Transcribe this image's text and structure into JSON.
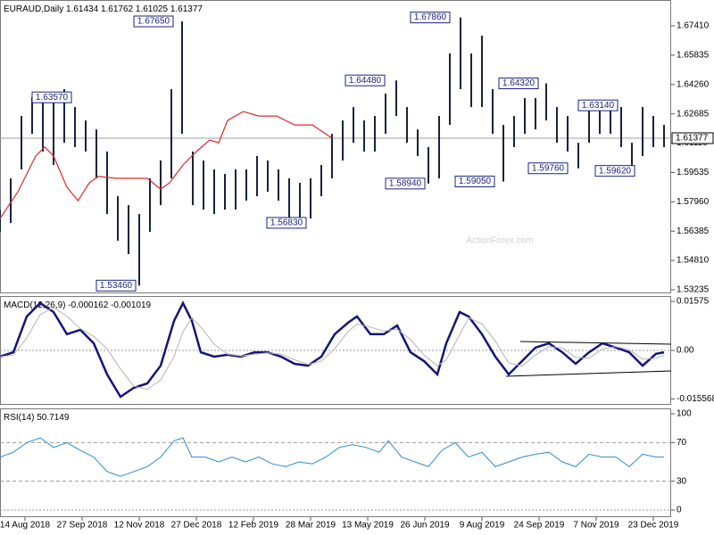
{
  "chart_data": [
    {
      "type": "hilo",
      "title": "EURAUD,Daily",
      "ohlc_header": [
        1.61434,
        1.61762,
        1.61025,
        1.61377
      ],
      "watermark": "ActionForex.com",
      "xlim": [
        0,
        376
      ],
      "ylim": [
        1.53091,
        1.68799
      ],
      "yticks": [
        {
          "value": 1.6741,
          "label": "1.67410"
        },
        {
          "value": 1.65835,
          "label": "1.65835"
        },
        {
          "value": 1.6426,
          "label": "1.64260"
        },
        {
          "value": 1.62685,
          "label": "1.62685"
        },
        {
          "value": 1.6111,
          "label": "1.61110"
        },
        {
          "value": 1.59535,
          "label": "1.59535"
        },
        {
          "value": 1.5796,
          "label": "1.57960"
        },
        {
          "value": 1.56385,
          "label": "1.56385"
        },
        {
          "value": 1.5481,
          "label": "1.54810"
        },
        {
          "value": 1.53235,
          "label": "1.53235"
        }
      ],
      "color": "#17243a",
      "x": [
        0,
        6,
        12,
        18,
        24,
        30,
        36,
        42,
        48,
        54,
        60,
        66,
        72,
        78,
        84,
        90,
        96,
        102,
        108,
        114,
        120,
        126,
        132,
        138,
        144,
        150,
        156,
        162,
        168,
        174,
        180,
        186,
        192,
        198,
        204,
        210,
        216,
        222,
        228,
        234,
        240,
        246,
        252,
        258,
        264,
        270,
        276,
        282,
        288,
        294,
        300,
        306,
        312,
        318,
        324,
        330,
        336,
        342,
        348,
        354,
        360,
        366,
        372
      ],
      "high": [
        1.5754,
        1.5922,
        1.6257,
        1.6357,
        1.6353,
        1.6329,
        1.6401,
        1.6305,
        1.6233,
        1.6185,
        1.6066,
        1.5826,
        1.5778,
        1.573,
        1.5922,
        1.6018,
        1.6401,
        1.6765,
        1.6066,
        1.6018,
        1.597,
        1.5946,
        1.597,
        1.597,
        1.6042,
        1.6018,
        1.597,
        1.5922,
        1.5898,
        1.5922,
        1.5994,
        1.6161,
        1.6233,
        1.6305,
        1.6233,
        1.6257,
        1.6377,
        1.6448,
        1.6305,
        1.6185,
        1.609,
        1.6257,
        1.6593,
        1.6786,
        1.6593,
        1.6688,
        1.6401,
        1.6209,
        1.6257,
        1.6353,
        1.6353,
        1.6432,
        1.6305,
        1.6257,
        1.6113,
        1.6305,
        1.6329,
        1.6314,
        1.6305,
        1.6113,
        1.6305,
        1.6257,
        1.6209
      ],
      "low": [
        1.5635,
        1.5682,
        1.597,
        1.6161,
        1.6066,
        1.5994,
        1.6113,
        1.609,
        1.6066,
        1.5922,
        1.573,
        1.5587,
        1.5515,
        1.5346,
        1.5635,
        1.5778,
        1.5922,
        1.6161,
        1.5778,
        1.5754,
        1.573,
        1.5754,
        1.5754,
        1.5802,
        1.5826,
        1.585,
        1.5802,
        1.5706,
        1.5683,
        1.5706,
        1.5826,
        1.5922,
        1.6018,
        1.6113,
        1.6066,
        1.6066,
        1.6161,
        1.6257,
        1.6113,
        1.6042,
        1.5894,
        1.5922,
        1.6209,
        1.6401,
        1.6305,
        1.6305,
        1.6161,
        1.5905,
        1.609,
        1.6161,
        1.6185,
        1.6233,
        1.6113,
        1.6066,
        1.5976,
        1.6113,
        1.6161,
        1.6161,
        1.609,
        1.5962,
        1.6042,
        1.609,
        1.609
      ],
      "ma": {
        "color": "#e0282b",
        "x": [
          0,
          10,
          20,
          25,
          30,
          37.5,
          43.75,
          50,
          55,
          65,
          75,
          82.5,
          90,
          95,
          102.5,
          110,
          117.5,
          122.5,
          127.5,
          136.25,
          145,
          155,
          165,
          175,
          182.5,
          186
        ],
        "values": [
          1.5706,
          1.585,
          1.6042,
          1.609,
          1.6042,
          1.5874,
          1.5802,
          1.5898,
          1.5932,
          1.5922,
          1.5922,
          1.5922,
          1.5864,
          1.5898,
          1.5994,
          1.6066,
          1.6128,
          1.6113,
          1.6233,
          1.6281,
          1.6257,
          1.6257,
          1.6209,
          1.6209,
          1.6161,
          1.6137
        ]
      },
      "last_price": 1.61377,
      "annotations": [
        {
          "text": "1.63570",
          "value": 1.6357
        },
        {
          "text": "1.67650",
          "value": 1.6765
        },
        {
          "text": "1.53460",
          "value": 1.5346
        },
        {
          "text": "1.64480",
          "value": 1.6448
        },
        {
          "text": "1.56830",
          "value": 1.5683
        },
        {
          "text": "1.58940",
          "value": 1.5894
        },
        {
          "text": "1.67860",
          "value": 1.6786
        },
        {
          "text": "1.59050",
          "value": 1.5905
        },
        {
          "text": "1.64320",
          "value": 1.6432
        },
        {
          "text": "1.59760",
          "value": 1.5976
        },
        {
          "text": "1.63140",
          "value": 1.6314
        },
        {
          "text": "1.59620",
          "value": 1.5962
        }
      ]
    },
    {
      "type": "line",
      "title": "MACD(12,26,9)",
      "header_values": [
        -0.000162,
        -0.001019
      ],
      "xlim": [
        0,
        376
      ],
      "ylim": [
        -0.01719,
        0.01747
      ],
      "yticks": [
        0.01575,
        {
          "value": 0,
          "label": "0.00"
        },
        -0.015568
      ],
      "x": [
        0,
        7.5,
        15,
        22.5,
        30,
        37.5,
        45,
        52.5,
        60,
        67.5,
        75,
        82.5,
        90,
        97.5,
        102.5,
        107.5,
        112.5,
        120,
        127.5,
        135,
        142.5,
        150,
        157.5,
        165,
        172.5,
        180,
        187.5,
        195,
        200,
        207.5,
        215,
        222.5,
        230,
        237.5,
        245,
        250,
        257.5,
        262.5,
        270,
        277.5,
        285,
        292.5,
        300,
        307.5,
        315,
        322.5,
        330,
        337.5,
        345,
        352.5,
        360,
        367.5,
        372
      ],
      "series": [
        {
          "color": "#15157a",
          "values": [
            -0.002,
            -0.0006,
            0.0109,
            0.0152,
            0.0123,
            0.0052,
            0.0066,
            0.0023,
            -0.0077,
            -0.0149,
            -0.012,
            -0.0106,
            -0.0049,
            0.0095,
            0.0152,
            0.0095,
            -0.0006,
            -0.002,
            -0.0014,
            -0.002,
            -0.0006,
            -0.0006,
            -0.002,
            -0.0043,
            -0.0049,
            -0.002,
            0.0052,
            0.0089,
            0.0109,
            0.0052,
            0.0052,
            0.008,
            -0.0006,
            -0.0034,
            -0.0077,
            0.0023,
            0.0123,
            0.0109,
            0.0052,
            -0.002,
            -0.0077,
            -0.0034,
            0.0009,
            0.0023,
            -0.0006,
            -0.0043,
            -0.0006,
            0.0023,
            0.0009,
            -0.0006,
            -0.0049,
            -0.0011,
            -0.0006
          ]
        },
        {
          "color": "#b4b4b4",
          "values": [
            -0.002,
            -0.0015,
            0.004,
            0.0115,
            0.0138,
            0.011,
            0.007,
            0.0045,
            0.0005,
            -0.006,
            -0.0115,
            -0.0125,
            -0.0095,
            -0.002,
            0.006,
            0.0105,
            0.0075,
            0.002,
            -0.0012,
            -0.0018,
            -0.0012,
            -0.0008,
            -0.0012,
            -0.003,
            -0.0045,
            -0.0035,
            0.0005,
            0.006,
            0.0085,
            0.0075,
            0.0062,
            0.0068,
            0.0035,
            -0.0015,
            -0.005,
            -0.003,
            0.005,
            0.0105,
            0.0085,
            0.003,
            -0.004,
            -0.005,
            -0.0015,
            0.0012,
            0.0008,
            -0.0022,
            -0.0025,
            0.0005,
            0.0012,
            0.0002,
            -0.0028,
            -0.0025,
            -0.0015
          ]
        }
      ]
    },
    {
      "type": "line",
      "title": "RSI(14)",
      "header_values": [
        50.7149
      ],
      "xlim": [
        0,
        376
      ],
      "ylim": [
        -7.4,
        105.6
      ],
      "yticks": [
        100,
        70,
        30,
        0
      ],
      "dashed_levels": [
        70,
        30
      ],
      "x": [
        0,
        7.5,
        15,
        22.5,
        30,
        37.5,
        45,
        52.5,
        60,
        67.5,
        75,
        82.5,
        90,
        97.5,
        102.5,
        107.5,
        115,
        122.5,
        130,
        137.5,
        145,
        152.5,
        160,
        167.5,
        175,
        182.5,
        190,
        197.5,
        205,
        212.5,
        217.5,
        225,
        232.5,
        240,
        247.5,
        255,
        262.5,
        270,
        277.5,
        285,
        292.5,
        300,
        307.5,
        315,
        322.5,
        330,
        337.5,
        345,
        352.5,
        360,
        367.5,
        372
      ],
      "series": [
        {
          "color": "#2d8bd0",
          "values": [
            55,
            60,
            70,
            75,
            65,
            70,
            62,
            55,
            40,
            35,
            40,
            45,
            55,
            72,
            75,
            55,
            55,
            50,
            55,
            50,
            55,
            48,
            45,
            50,
            48,
            55,
            65,
            68,
            65,
            60,
            72,
            55,
            50,
            45,
            62,
            70,
            55,
            60,
            45,
            50,
            55,
            58,
            60,
            50,
            45,
            58,
            55,
            55,
            45,
            58,
            55,
            55
          ]
        }
      ],
      "xticks": [
        {
          "value": 14,
          "label": "14 Aug 2018"
        },
        {
          "value": 46,
          "label": "27 Sep 2018"
        },
        {
          "value": 78,
          "label": "12 Nov 2018"
        },
        {
          "value": 110,
          "label": "27 Dec 2018"
        },
        {
          "value": 142,
          "label": "12 Feb 2019"
        },
        {
          "value": 174,
          "label": "28 Mar 2019"
        },
        {
          "value": 206,
          "label": "13 May 2019"
        },
        {
          "value": 238,
          "label": "26 Jun 2019"
        },
        {
          "value": 270,
          "label": "9 Aug 2019"
        },
        {
          "value": 302,
          "label": "24 Sep 2019"
        },
        {
          "value": 334,
          "label": "7 Nov 2019"
        },
        {
          "value": 366,
          "label": "23 Dec 2019"
        }
      ]
    }
  ]
}
